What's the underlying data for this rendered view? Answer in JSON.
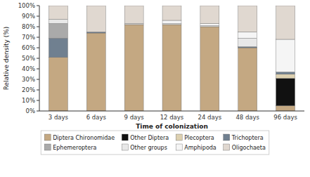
{
  "chart_data": {
    "type": "bar",
    "stacked": true,
    "x_label": "Time of colonization",
    "y_label": "Relative density (%)",
    "categories": [
      "3 days",
      "6 days",
      "9 days",
      "12 days",
      "24 days",
      "48 days",
      "96 days"
    ],
    "series": [
      {
        "name": "Diptera Chironomidae",
        "color": "#c4a882",
        "values": [
          51,
          74,
          82,
          82,
          80,
          60,
          5
        ]
      },
      {
        "name": "Other Diptera",
        "color": "#111111",
        "values": [
          0,
          0,
          0,
          0,
          0,
          0,
          26
        ]
      },
      {
        "name": "Plecoptera",
        "color": "#ddd0b0",
        "values": [
          0,
          0,
          0,
          0,
          0,
          0,
          4
        ]
      },
      {
        "name": "Trichoptera",
        "color": "#708090",
        "values": [
          18,
          1,
          0,
          0,
          0,
          1,
          2
        ]
      },
      {
        "name": "Ephemeroptera",
        "color": "#aaaaaa",
        "values": [
          14,
          0,
          0,
          0,
          0,
          0,
          0
        ]
      },
      {
        "name": "Other groups",
        "color": "#e8e8e8",
        "values": [
          4,
          0,
          1,
          1,
          1,
          8,
          0
        ]
      },
      {
        "name": "Amphipoda",
        "color": "#f5f5f5",
        "values": [
          0,
          0,
          0,
          3,
          2,
          6,
          31
        ]
      },
      {
        "name": "Oligochaeta",
        "color": "#e0d8d0",
        "values": [
          13,
          25,
          17,
          14,
          17,
          25,
          32
        ]
      }
    ],
    "ylim": [
      0,
      100
    ],
    "yticks": [
      {
        "value": 0,
        "label": "0%"
      },
      {
        "value": 10,
        "label": "10%"
      },
      {
        "value": 20,
        "label": "20%"
      },
      {
        "value": 30,
        "label": "30%"
      },
      {
        "value": 40,
        "label": "40%"
      },
      {
        "value": 50,
        "label": "50%"
      },
      {
        "value": 60,
        "label": "60%"
      },
      {
        "value": 70,
        "label": "70%"
      },
      {
        "value": 80,
        "label": "80%"
      },
      {
        "value": 90,
        "label": "90%"
      },
      {
        "value": 100,
        "label": "100%"
      }
    ],
    "grid": false,
    "legend": "bottom"
  }
}
